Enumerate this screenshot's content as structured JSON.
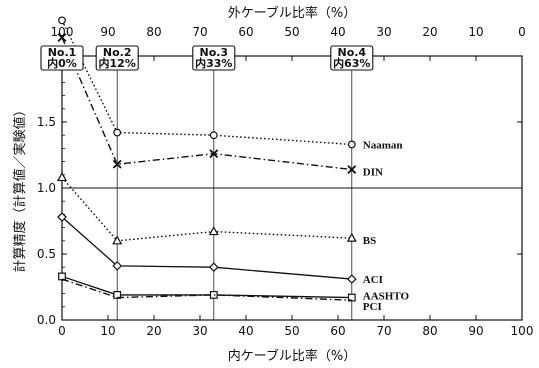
{
  "chart_data": {
    "type": "line",
    "xlabel": "内ケーブル比率（%）",
    "x2label": "外ケーブル比率（%）",
    "ylabel": "計算精度（計算値／実験値）",
    "xlim": [
      0,
      100
    ],
    "ylim": [
      0.0,
      2.0
    ],
    "x_ticks": [
      0,
      10,
      20,
      30,
      40,
      50,
      60,
      70,
      80,
      90,
      100
    ],
    "x2_ticks": [
      100,
      90,
      80,
      70,
      60,
      50,
      40,
      30,
      20,
      10,
      0
    ],
    "y_ticks": [
      "0.0",
      "0.5",
      "1.0",
      "1.5",
      "2"
    ],
    "reference_line": 1.0,
    "specimens": [
      {
        "x": 0,
        "name": "No.1",
        "detail": "内0%"
      },
      {
        "x": 12,
        "name": "No.2",
        "detail": "内12%"
      },
      {
        "x": 33,
        "name": "No.3",
        "detail": "内33%"
      },
      {
        "x": 63,
        "name": "No.4",
        "detail": "内63%"
      }
    ],
    "x": [
      0,
      12,
      33,
      63
    ],
    "series": [
      {
        "name": "Naaman",
        "marker": "circle",
        "dash": "dotted",
        "values": [
          2.27,
          1.42,
          1.4,
          1.33
        ]
      },
      {
        "name": "DIN",
        "marker": "x",
        "dash": "dashdot",
        "values": [
          2.14,
          1.18,
          1.26,
          1.14
        ]
      },
      {
        "name": "BS",
        "marker": "triangle",
        "dash": "dotted",
        "values": [
          1.08,
          0.6,
          0.67,
          0.62
        ]
      },
      {
        "name": "ACI",
        "marker": "diamond",
        "dash": "solid",
        "values": [
          0.78,
          0.41,
          0.4,
          0.31
        ]
      },
      {
        "name": "AASHTO",
        "marker": "square",
        "dash": "solid",
        "values": [
          0.33,
          0.19,
          0.19,
          0.17
        ]
      },
      {
        "name": "PCI",
        "marker": "none",
        "dash": "dashdot",
        "values": [
          0.31,
          0.17,
          0.19,
          0.15
        ]
      }
    ]
  }
}
